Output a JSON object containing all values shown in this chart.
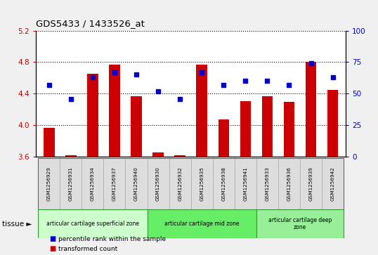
{
  "title": "GDS5433 / 1433526_at",
  "samples": [
    "GSM1256929",
    "GSM1256931",
    "GSM1256934",
    "GSM1256937",
    "GSM1256940",
    "GSM1256930",
    "GSM1256932",
    "GSM1256935",
    "GSM1256938",
    "GSM1256941",
    "GSM1256933",
    "GSM1256936",
    "GSM1256939",
    "GSM1256942"
  ],
  "bar_values": [
    3.97,
    3.62,
    4.65,
    4.77,
    4.37,
    3.66,
    3.62,
    4.77,
    4.07,
    4.31,
    4.37,
    4.3,
    4.8,
    4.45
  ],
  "dot_values_pct": [
    57,
    46,
    63,
    67,
    65,
    52,
    46,
    67,
    57,
    60,
    60,
    57,
    74,
    63
  ],
  "bar_color": "#cc0000",
  "dot_color": "#0000cc",
  "ylim_left": [
    3.6,
    5.2
  ],
  "ylim_right": [
    0,
    100
  ],
  "yticks_left": [
    3.6,
    4.0,
    4.4,
    4.8,
    5.2
  ],
  "yticks_right": [
    0,
    25,
    50,
    75,
    100
  ],
  "groups": [
    {
      "label": "articular cartilage superficial zone",
      "start": 0,
      "end": 5,
      "color": "#ccffcc",
      "border": "#339933"
    },
    {
      "label": "articular cartilage mid zone",
      "start": 5,
      "end": 10,
      "color": "#66ee66",
      "border": "#339933"
    },
    {
      "label": "articular cartilage deep\nzone",
      "start": 10,
      "end": 14,
      "color": "#99ee99",
      "border": "#339933"
    }
  ],
  "legend_items": [
    {
      "label": "transformed count",
      "color": "#cc0000",
      "marker": "s"
    },
    {
      "label": "percentile rank within the sample",
      "color": "#0000cc",
      "marker": "s"
    }
  ],
  "bar_bottom": 3.6,
  "cell_bg": "#dddddd",
  "cell_border": "#aaaaaa",
  "fig_bg": "#f0f0f0",
  "plot_bg": "#ffffff"
}
